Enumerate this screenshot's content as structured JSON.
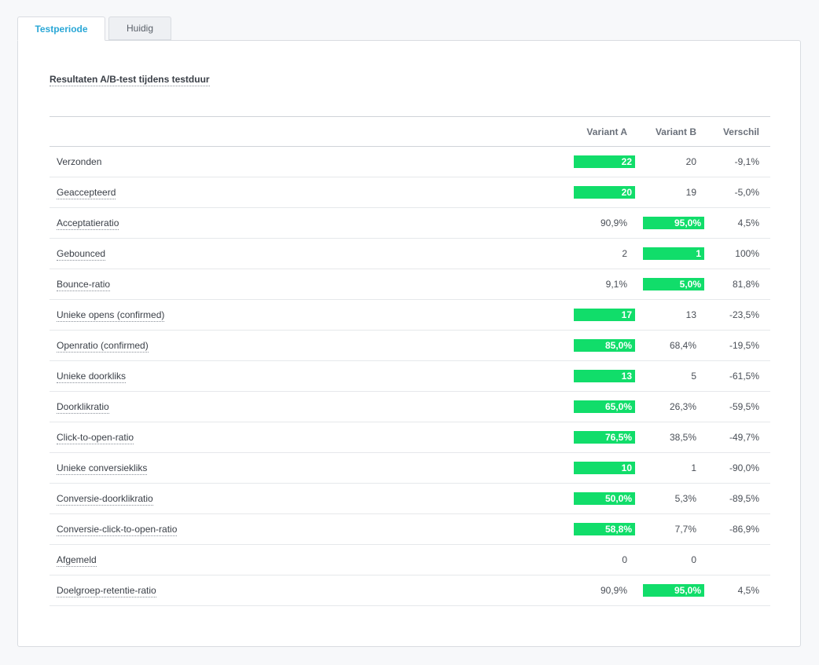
{
  "tabs": [
    {
      "label": "Testperiode",
      "active": true
    },
    {
      "label": "Huidig",
      "active": false
    }
  ],
  "section": {
    "title": "Resultaten A/B-test tijdens testduur"
  },
  "table": {
    "headers": [
      "",
      "Variant A",
      "Variant B",
      "Verschil"
    ],
    "highlight_color": "#11dd6a",
    "rows": [
      {
        "label": "Verzonden",
        "a": "22",
        "b": "20",
        "diff": "-9,1%",
        "winner": "a",
        "tooltip": false
      },
      {
        "label": "Geaccepteerd",
        "a": "20",
        "b": "19",
        "diff": "-5,0%",
        "winner": "a",
        "tooltip": true
      },
      {
        "label": "Acceptatieratio",
        "a": "90,9%",
        "b": "95,0%",
        "diff": "4,5%",
        "winner": "b",
        "tooltip": true
      },
      {
        "label": "Gebounced",
        "a": "2",
        "b": "1",
        "diff": "100%",
        "winner": "b",
        "tooltip": true
      },
      {
        "label": "Bounce-ratio",
        "a": "9,1%",
        "b": "5,0%",
        "diff": "81,8%",
        "winner": "b",
        "tooltip": true
      },
      {
        "label": "Unieke opens (confirmed)",
        "a": "17",
        "b": "13",
        "diff": "-23,5%",
        "winner": "a",
        "tooltip": true
      },
      {
        "label": "Openratio (confirmed)",
        "a": "85,0%",
        "b": "68,4%",
        "diff": "-19,5%",
        "winner": "a",
        "tooltip": true
      },
      {
        "label": "Unieke doorkliks",
        "a": "13",
        "b": "5",
        "diff": "-61,5%",
        "winner": "a",
        "tooltip": true
      },
      {
        "label": "Doorklikratio",
        "a": "65,0%",
        "b": "26,3%",
        "diff": "-59,5%",
        "winner": "a",
        "tooltip": true
      },
      {
        "label": "Click-to-open-ratio",
        "a": "76,5%",
        "b": "38,5%",
        "diff": "-49,7%",
        "winner": "a",
        "tooltip": true
      },
      {
        "label": "Unieke conversiekliks",
        "a": "10",
        "b": "1",
        "diff": "-90,0%",
        "winner": "a",
        "tooltip": true
      },
      {
        "label": "Conversie-doorklikratio",
        "a": "50,0%",
        "b": "5,3%",
        "diff": "-89,5%",
        "winner": "a",
        "tooltip": true
      },
      {
        "label": "Conversie-click-to-open-ratio",
        "a": "58,8%",
        "b": "7,7%",
        "diff": "-86,9%",
        "winner": "a",
        "tooltip": true
      },
      {
        "label": "Afgemeld",
        "a": "0",
        "b": "0",
        "diff": "",
        "winner": "",
        "tooltip": true
      },
      {
        "label": "Doelgroep-retentie-ratio",
        "a": "90,9%",
        "b": "95,0%",
        "diff": "4,5%",
        "winner": "b",
        "tooltip": true
      }
    ]
  }
}
